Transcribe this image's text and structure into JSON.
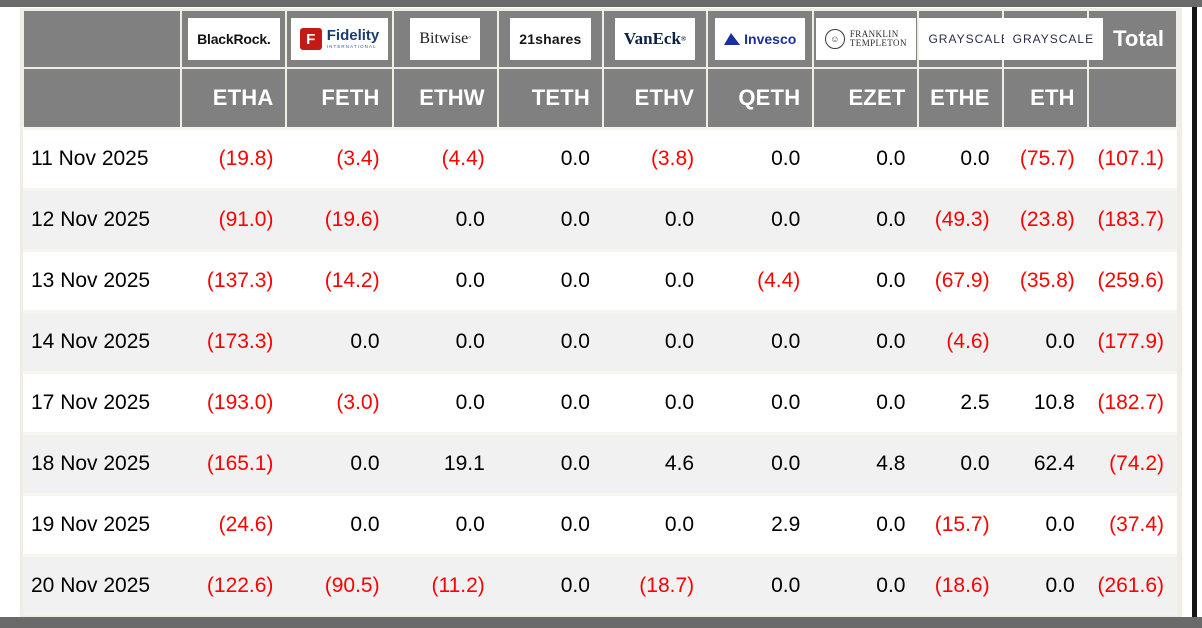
{
  "colors": {
    "header_gray": "#808080",
    "frame_gray": "#6a6a6a",
    "negative_red": "#ff0000",
    "zebra_light": "#f1f1f1",
    "table_border_cream": "#f0ede5"
  },
  "table": {
    "total_label": "Total",
    "providers": [
      {
        "name": "BlackRock",
        "ticker": "ETHA",
        "logo_text": "BlackRock."
      },
      {
        "name": "Fidelity International",
        "ticker": "FETH",
        "logo_mark": "F",
        "logo_text": "Fidelity",
        "logo_sub": "INTERNATIONAL"
      },
      {
        "name": "Bitwise",
        "ticker": "ETHW",
        "logo_text": "Bitwise"
      },
      {
        "name": "21shares",
        "ticker": "TETH",
        "logo_text": "21shares"
      },
      {
        "name": "VanEck",
        "ticker": "ETHV",
        "logo_text": "VanEck"
      },
      {
        "name": "Invesco",
        "ticker": "QETH",
        "logo_text": "Invesco"
      },
      {
        "name": "Franklin Templeton",
        "ticker": "EZET",
        "logo_line1": "FRANKLIN",
        "logo_line2": "TEMPLETON"
      },
      {
        "name": "Grayscale",
        "ticker": "ETHE",
        "logo_text": "GRAYSCALE"
      },
      {
        "name": "Grayscale",
        "ticker": "ETH",
        "logo_text": "GRAYSCALE"
      }
    ],
    "rows": [
      {
        "date": "11 Nov 2025",
        "values": [
          "(19.8)",
          "(3.4)",
          "(4.4)",
          "0.0",
          "(3.8)",
          "0.0",
          "0.0",
          "0.0",
          "(75.7)"
        ],
        "total": "(107.1)"
      },
      {
        "date": "12 Nov 2025",
        "values": [
          "(91.0)",
          "(19.6)",
          "0.0",
          "0.0",
          "0.0",
          "0.0",
          "0.0",
          "(49.3)",
          "(23.8)"
        ],
        "total": "(183.7)"
      },
      {
        "date": "13 Nov 2025",
        "values": [
          "(137.3)",
          "(14.2)",
          "0.0",
          "0.0",
          "0.0",
          "(4.4)",
          "0.0",
          "(67.9)",
          "(35.8)"
        ],
        "total": "(259.6)"
      },
      {
        "date": "14 Nov 2025",
        "values": [
          "(173.3)",
          "0.0",
          "0.0",
          "0.0",
          "0.0",
          "0.0",
          "0.0",
          "(4.6)",
          "0.0"
        ],
        "total": "(177.9)"
      },
      {
        "date": "17 Nov 2025",
        "values": [
          "(193.0)",
          "(3.0)",
          "0.0",
          "0.0",
          "0.0",
          "0.0",
          "0.0",
          "2.5",
          "10.8"
        ],
        "total": "(182.7)"
      },
      {
        "date": "18 Nov 2025",
        "values": [
          "(165.1)",
          "0.0",
          "19.1",
          "0.0",
          "4.6",
          "0.0",
          "4.8",
          "0.0",
          "62.4"
        ],
        "total": "(74.2)"
      },
      {
        "date": "19 Nov 2025",
        "values": [
          "(24.6)",
          "0.0",
          "0.0",
          "0.0",
          "0.0",
          "2.9",
          "0.0",
          "(15.7)",
          "0.0"
        ],
        "total": "(37.4)"
      },
      {
        "date": "20 Nov 2025",
        "values": [
          "(122.6)",
          "(90.5)",
          "(11.2)",
          "0.0",
          "(18.7)",
          "0.0",
          "0.0",
          "(18.6)",
          "0.0"
        ],
        "total": "(261.6)"
      }
    ]
  }
}
